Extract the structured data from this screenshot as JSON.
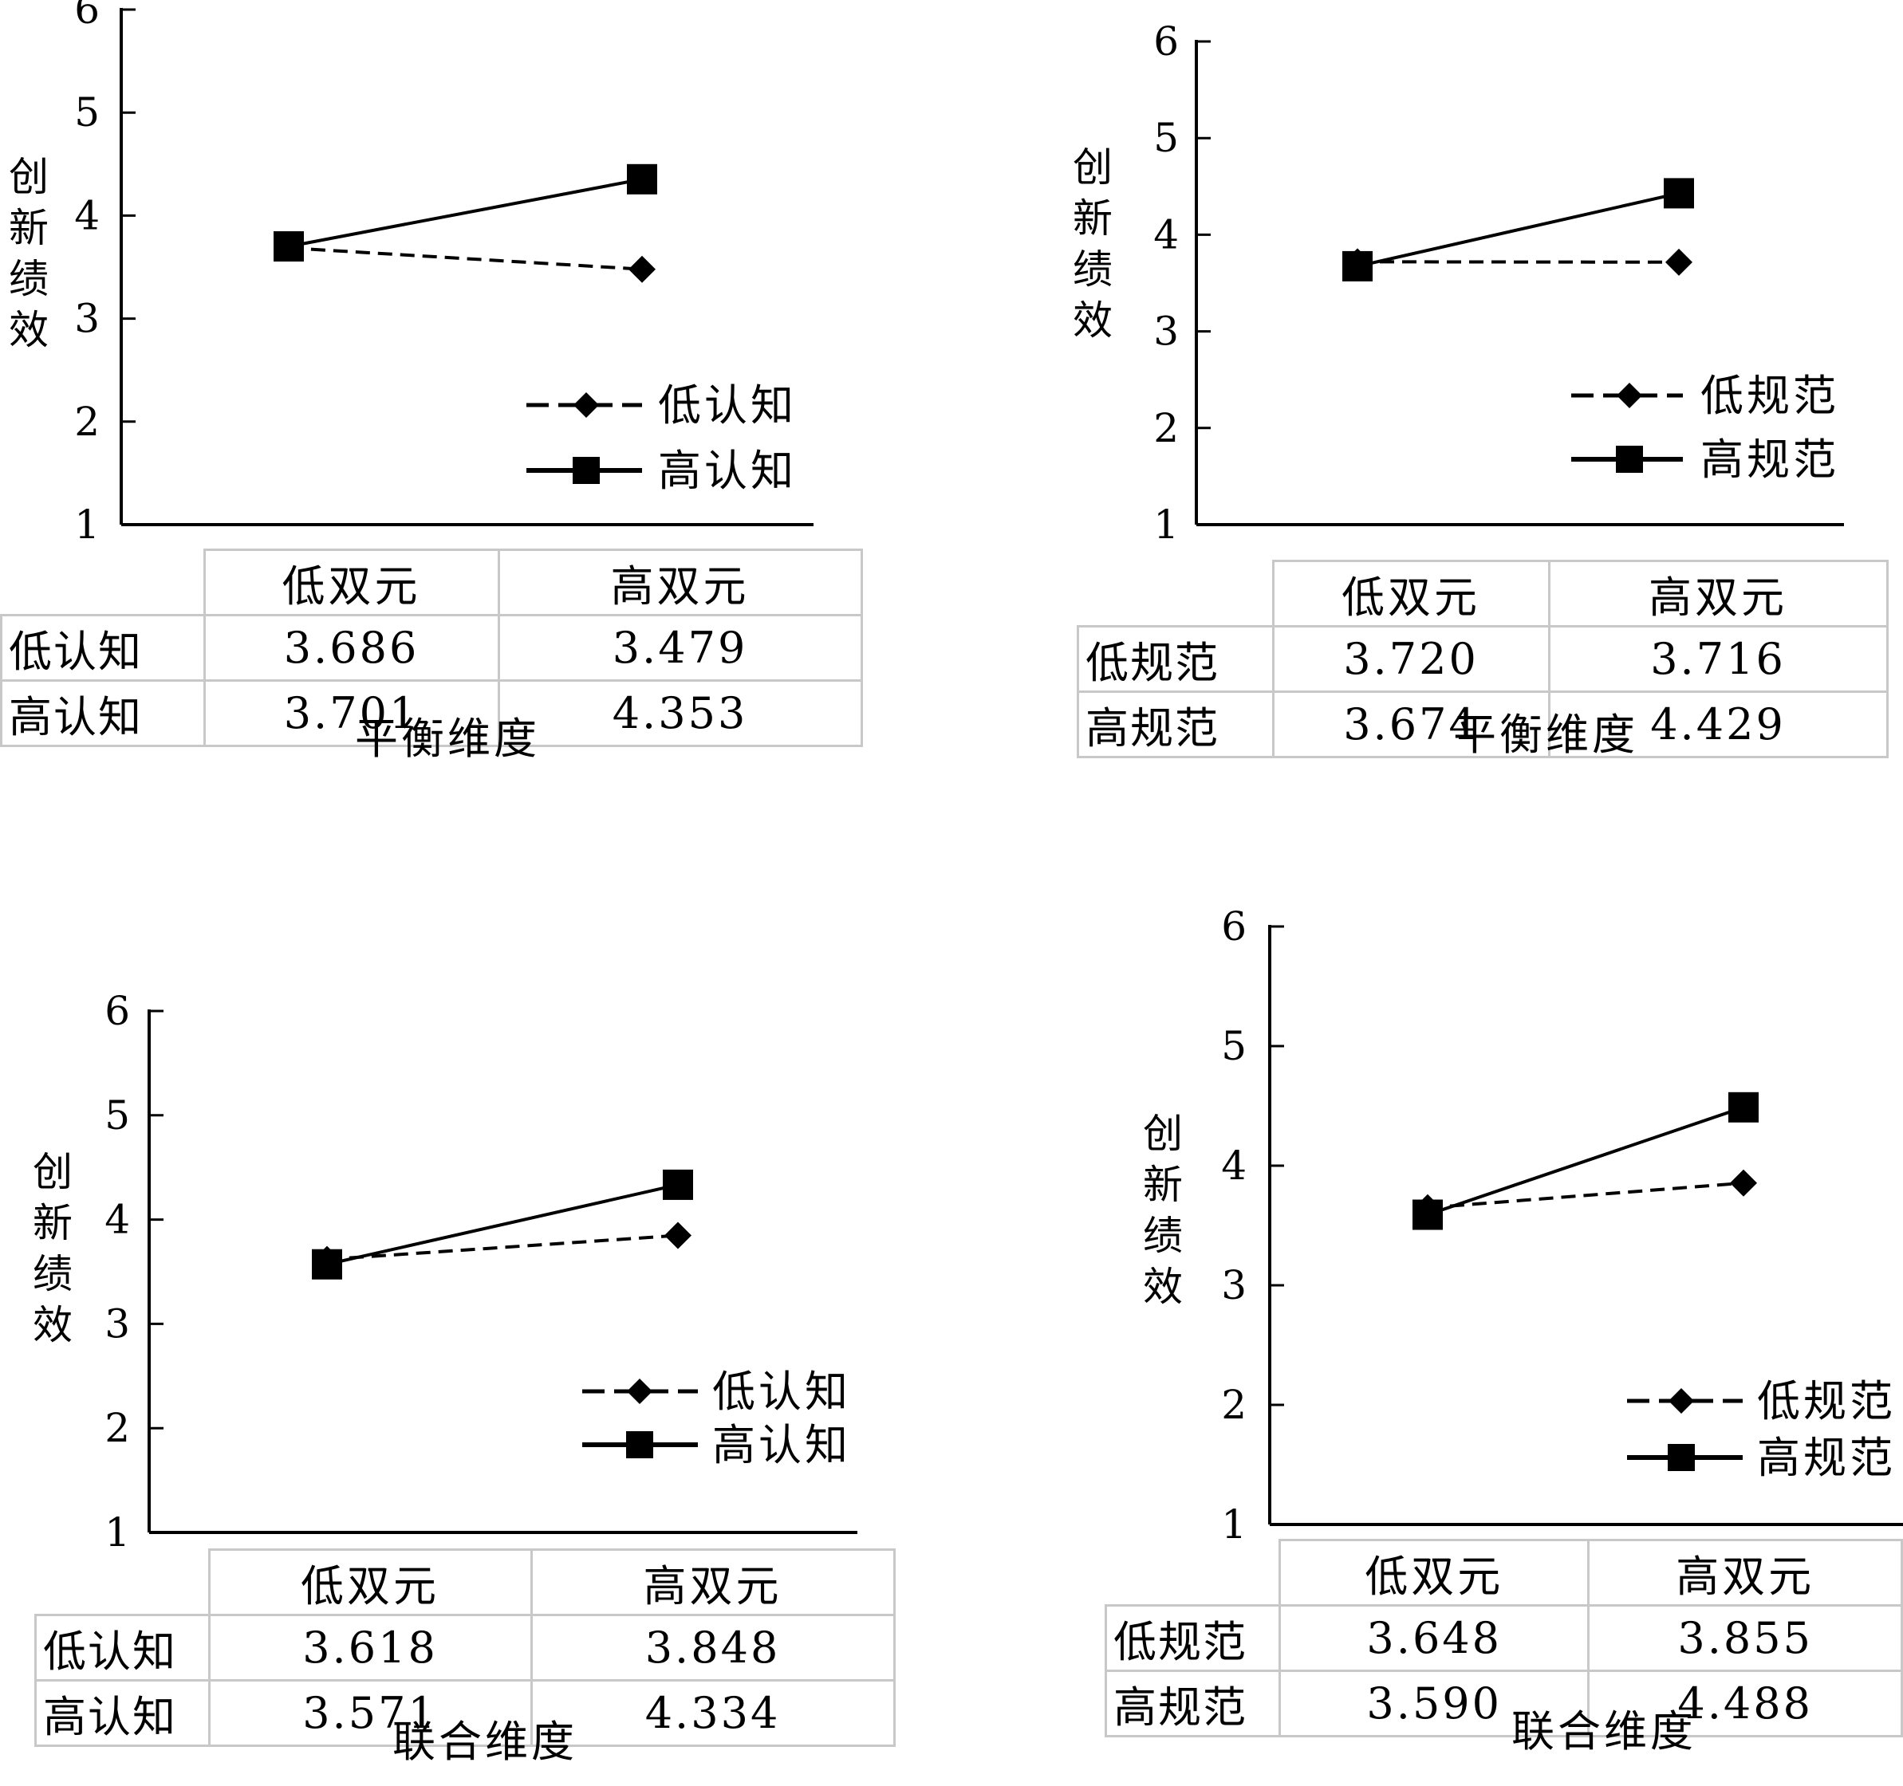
{
  "chart_data": [
    {
      "type": "line",
      "ylabel": "创新绩效",
      "ylim": [
        1,
        6
      ],
      "yticks": [
        1,
        2,
        3,
        4,
        5,
        6
      ],
      "categories": [
        "低双元",
        "高双元"
      ],
      "xlabel": "平衡维度",
      "legend": "bottom-right",
      "series": [
        {
          "name": "低认知",
          "values": [
            3.686,
            3.479
          ],
          "style": "dashed",
          "marker": "diamond"
        },
        {
          "name": "高认知",
          "values": [
            3.701,
            4.353
          ],
          "style": "solid",
          "marker": "square"
        }
      ],
      "table": {
        "col_headers": [
          "低双元",
          "高双元"
        ],
        "rows": [
          {
            "label": "低认知",
            "values": [
              "3.686",
              "3.479"
            ]
          },
          {
            "label": "高认知",
            "values": [
              "3.701",
              "4.353"
            ]
          }
        ]
      }
    },
    {
      "type": "line",
      "ylabel": "创新绩效",
      "ylim": [
        1,
        6
      ],
      "yticks": [
        1,
        2,
        3,
        4,
        5,
        6
      ],
      "categories": [
        "低双元",
        "高双元"
      ],
      "xlabel": "平衡维度",
      "legend": "bottom-right",
      "series": [
        {
          "name": "低规范",
          "values": [
            3.72,
            3.716
          ],
          "style": "dashed",
          "marker": "diamond"
        },
        {
          "name": "高规范",
          "values": [
            3.674,
            4.429
          ],
          "style": "solid",
          "marker": "square"
        }
      ],
      "table": {
        "col_headers": [
          "低双元",
          "高双元"
        ],
        "rows": [
          {
            "label": "低规范",
            "values": [
              "3.720",
              "3.716"
            ]
          },
          {
            "label": "高规范",
            "values": [
              "3.674",
              "4.429"
            ]
          }
        ]
      }
    },
    {
      "type": "line",
      "ylabel": "创新绩效",
      "ylim": [
        1,
        6
      ],
      "yticks": [
        1,
        2,
        3,
        4,
        5,
        6
      ],
      "categories": [
        "低双元",
        "高双元"
      ],
      "xlabel": "联合维度",
      "legend": "bottom-right",
      "series": [
        {
          "name": "低认知",
          "values": [
            3.618,
            3.848
          ],
          "style": "dashed",
          "marker": "diamond"
        },
        {
          "name": "高认知",
          "values": [
            3.571,
            4.334
          ],
          "style": "solid",
          "marker": "square"
        }
      ],
      "table": {
        "col_headers": [
          "低双元",
          "高双元"
        ],
        "rows": [
          {
            "label": "低认知",
            "values": [
              "3.618",
              "3.848"
            ]
          },
          {
            "label": "高认知",
            "values": [
              "3.571",
              "4.334"
            ]
          }
        ]
      }
    },
    {
      "type": "line",
      "ylabel": "创新绩效",
      "ylim": [
        1,
        6
      ],
      "yticks": [
        1,
        2,
        3,
        4,
        5,
        6
      ],
      "categories": [
        "低双元",
        "高双元"
      ],
      "xlabel": "联合维度",
      "legend": "bottom-right",
      "series": [
        {
          "name": "低规范",
          "values": [
            3.648,
            3.855
          ],
          "style": "dashed",
          "marker": "diamond"
        },
        {
          "name": "高规范",
          "values": [
            3.59,
            4.488
          ],
          "style": "solid",
          "marker": "square"
        }
      ],
      "table": {
        "col_headers": [
          "低双元",
          "高双元"
        ],
        "rows": [
          {
            "label": "低规范",
            "values": [
              "3.648",
              "3.855"
            ]
          },
          {
            "label": "高规范",
            "values": [
              "3.590",
              "4.488"
            ]
          }
        ]
      }
    }
  ]
}
